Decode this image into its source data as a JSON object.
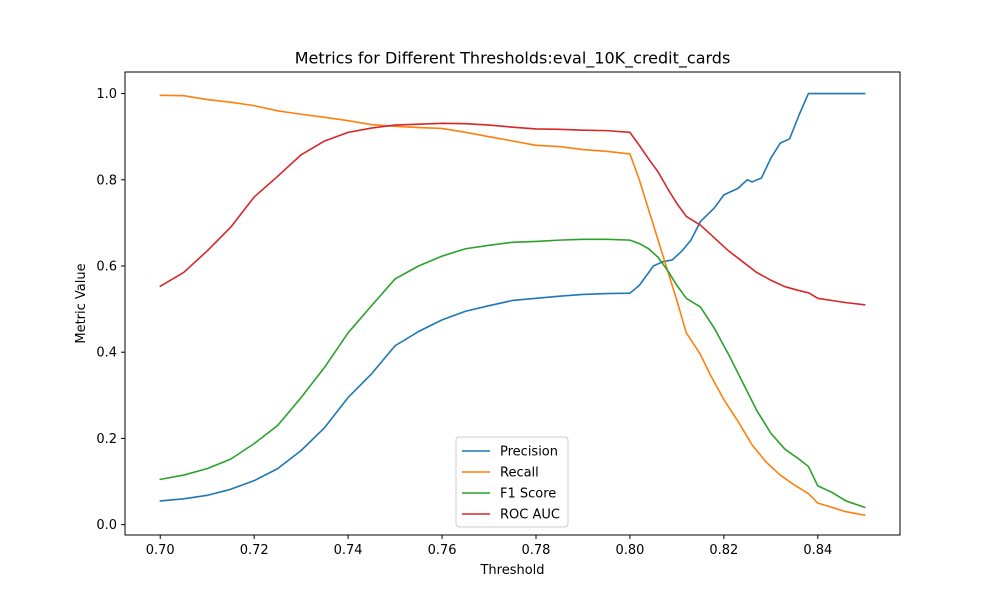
{
  "chart_data": {
    "type": "line",
    "title": "Metrics for Different Thresholds:eval_10K_credit_cards",
    "xlabel": "Threshold",
    "ylabel": "Metric Value",
    "xlim": [
      0.6925,
      0.8575
    ],
    "ylim": [
      -0.024,
      1.05
    ],
    "xticks": [
      0.7,
      0.72,
      0.74,
      0.76,
      0.78,
      0.8,
      0.82,
      0.84
    ],
    "xtick_labels": [
      "0.70",
      "0.72",
      "0.74",
      "0.76",
      "0.78",
      "0.80",
      "0.82",
      "0.84"
    ],
    "yticks": [
      0.0,
      0.2,
      0.4,
      0.6,
      0.8,
      1.0
    ],
    "ytick_labels": [
      "0.0",
      "0.2",
      "0.4",
      "0.6",
      "0.8",
      "1.0"
    ],
    "grid": false,
    "legend_position": "bottom-center",
    "series": [
      {
        "name": "Precision",
        "color": "#1f77b4",
        "points": [
          [
            0.7,
            0.055
          ],
          [
            0.705,
            0.06
          ],
          [
            0.71,
            0.068
          ],
          [
            0.715,
            0.082
          ],
          [
            0.72,
            0.102
          ],
          [
            0.725,
            0.13
          ],
          [
            0.73,
            0.172
          ],
          [
            0.735,
            0.225
          ],
          [
            0.74,
            0.295
          ],
          [
            0.745,
            0.35
          ],
          [
            0.75,
            0.415
          ],
          [
            0.755,
            0.448
          ],
          [
            0.76,
            0.475
          ],
          [
            0.765,
            0.495
          ],
          [
            0.77,
            0.508
          ],
          [
            0.775,
            0.52
          ],
          [
            0.78,
            0.525
          ],
          [
            0.785,
            0.53
          ],
          [
            0.79,
            0.534
          ],
          [
            0.795,
            0.536
          ],
          [
            0.8,
            0.537
          ],
          [
            0.802,
            0.555
          ],
          [
            0.805,
            0.6
          ],
          [
            0.807,
            0.61
          ],
          [
            0.809,
            0.614
          ],
          [
            0.811,
            0.634
          ],
          [
            0.813,
            0.66
          ],
          [
            0.815,
            0.703
          ],
          [
            0.818,
            0.735
          ],
          [
            0.82,
            0.765
          ],
          [
            0.823,
            0.78
          ],
          [
            0.825,
            0.8
          ],
          [
            0.826,
            0.795
          ],
          [
            0.828,
            0.804
          ],
          [
            0.83,
            0.85
          ],
          [
            0.832,
            0.885
          ],
          [
            0.834,
            0.895
          ],
          [
            0.836,
            0.95
          ],
          [
            0.838,
            1.0
          ],
          [
            0.84,
            1.0
          ],
          [
            0.845,
            1.0
          ],
          [
            0.85,
            1.0
          ]
        ]
      },
      {
        "name": "Recall",
        "color": "#ff7f0e",
        "points": [
          [
            0.7,
            0.996
          ],
          [
            0.705,
            0.995
          ],
          [
            0.71,
            0.986
          ],
          [
            0.715,
            0.98
          ],
          [
            0.72,
            0.972
          ],
          [
            0.725,
            0.96
          ],
          [
            0.73,
            0.952
          ],
          [
            0.735,
            0.945
          ],
          [
            0.74,
            0.937
          ],
          [
            0.745,
            0.928
          ],
          [
            0.75,
            0.924
          ],
          [
            0.755,
            0.921
          ],
          [
            0.76,
            0.919
          ],
          [
            0.765,
            0.91
          ],
          [
            0.77,
            0.9
          ],
          [
            0.775,
            0.89
          ],
          [
            0.78,
            0.88
          ],
          [
            0.785,
            0.877
          ],
          [
            0.79,
            0.87
          ],
          [
            0.795,
            0.866
          ],
          [
            0.8,
            0.86
          ],
          [
            0.802,
            0.8
          ],
          [
            0.804,
            0.73
          ],
          [
            0.806,
            0.66
          ],
          [
            0.808,
            0.59
          ],
          [
            0.81,
            0.52
          ],
          [
            0.812,
            0.445
          ],
          [
            0.815,
            0.395
          ],
          [
            0.817,
            0.35
          ],
          [
            0.82,
            0.29
          ],
          [
            0.823,
            0.24
          ],
          [
            0.826,
            0.185
          ],
          [
            0.829,
            0.145
          ],
          [
            0.832,
            0.115
          ],
          [
            0.835,
            0.092
          ],
          [
            0.838,
            0.072
          ],
          [
            0.84,
            0.05
          ],
          [
            0.843,
            0.04
          ],
          [
            0.846,
            0.03
          ],
          [
            0.85,
            0.022
          ]
        ]
      },
      {
        "name": "F1 Score",
        "color": "#2ca02c",
        "points": [
          [
            0.7,
            0.105
          ],
          [
            0.705,
            0.115
          ],
          [
            0.71,
            0.13
          ],
          [
            0.715,
            0.152
          ],
          [
            0.72,
            0.188
          ],
          [
            0.725,
            0.23
          ],
          [
            0.73,
            0.295
          ],
          [
            0.735,
            0.365
          ],
          [
            0.74,
            0.445
          ],
          [
            0.745,
            0.508
          ],
          [
            0.75,
            0.57
          ],
          [
            0.755,
            0.6
          ],
          [
            0.76,
            0.623
          ],
          [
            0.765,
            0.64
          ],
          [
            0.77,
            0.648
          ],
          [
            0.775,
            0.655
          ],
          [
            0.78,
            0.657
          ],
          [
            0.785,
            0.66
          ],
          [
            0.79,
            0.662
          ],
          [
            0.795,
            0.662
          ],
          [
            0.8,
            0.66
          ],
          [
            0.802,
            0.652
          ],
          [
            0.804,
            0.64
          ],
          [
            0.806,
            0.62
          ],
          [
            0.808,
            0.59
          ],
          [
            0.81,
            0.555
          ],
          [
            0.812,
            0.525
          ],
          [
            0.815,
            0.505
          ],
          [
            0.818,
            0.455
          ],
          [
            0.821,
            0.395
          ],
          [
            0.824,
            0.33
          ],
          [
            0.827,
            0.265
          ],
          [
            0.83,
            0.212
          ],
          [
            0.833,
            0.175
          ],
          [
            0.836,
            0.152
          ],
          [
            0.838,
            0.135
          ],
          [
            0.84,
            0.09
          ],
          [
            0.843,
            0.075
          ],
          [
            0.846,
            0.055
          ],
          [
            0.85,
            0.04
          ]
        ]
      },
      {
        "name": "ROC AUC",
        "color": "#d62728",
        "points": [
          [
            0.7,
            0.553
          ],
          [
            0.705,
            0.585
          ],
          [
            0.71,
            0.635
          ],
          [
            0.715,
            0.69
          ],
          [
            0.72,
            0.76
          ],
          [
            0.725,
            0.808
          ],
          [
            0.73,
            0.858
          ],
          [
            0.735,
            0.89
          ],
          [
            0.74,
            0.91
          ],
          [
            0.745,
            0.92
          ],
          [
            0.75,
            0.927
          ],
          [
            0.755,
            0.929
          ],
          [
            0.76,
            0.931
          ],
          [
            0.765,
            0.93
          ],
          [
            0.77,
            0.927
          ],
          [
            0.775,
            0.922
          ],
          [
            0.78,
            0.918
          ],
          [
            0.785,
            0.917
          ],
          [
            0.79,
            0.915
          ],
          [
            0.795,
            0.914
          ],
          [
            0.8,
            0.91
          ],
          [
            0.802,
            0.88
          ],
          [
            0.804,
            0.848
          ],
          [
            0.806,
            0.818
          ],
          [
            0.808,
            0.78
          ],
          [
            0.81,
            0.745
          ],
          [
            0.812,
            0.715
          ],
          [
            0.815,
            0.695
          ],
          [
            0.818,
            0.665
          ],
          [
            0.821,
            0.635
          ],
          [
            0.824,
            0.61
          ],
          [
            0.827,
            0.585
          ],
          [
            0.83,
            0.567
          ],
          [
            0.833,
            0.552
          ],
          [
            0.836,
            0.543
          ],
          [
            0.838,
            0.538
          ],
          [
            0.84,
            0.525
          ],
          [
            0.843,
            0.52
          ],
          [
            0.846,
            0.515
          ],
          [
            0.85,
            0.51
          ]
        ]
      }
    ]
  }
}
